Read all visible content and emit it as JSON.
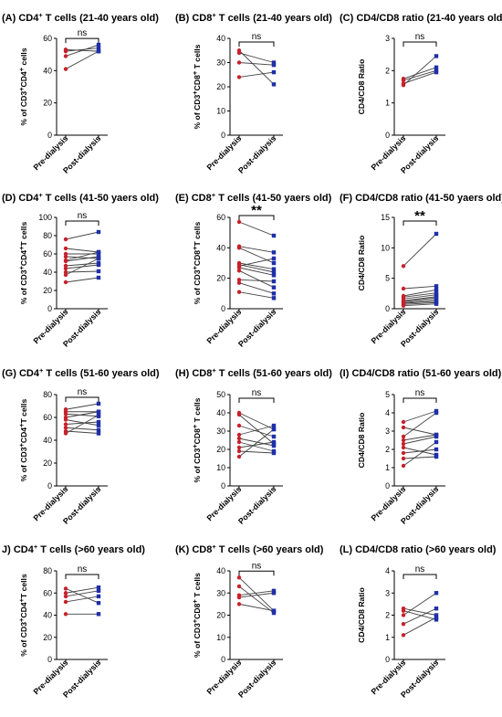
{
  "colors": {
    "pre": "#c8202a",
    "post": "#1f2fa8",
    "line": "#444444",
    "axis": "#000000"
  },
  "chart_data": [
    {
      "id": "A",
      "type": "line",
      "label": "(A)",
      "title_main": "CD4",
      "title_sup": "+",
      "title_rest": " T cells (21-40 years old)",
      "ylabel_parts": [
        [
          "% of CD3",
          ""
        ],
        [
          "+",
          "sup"
        ],
        [
          "CD4",
          ""
        ],
        [
          "+",
          "sup"
        ],
        [
          " cells",
          ""
        ]
      ],
      "ylim": [
        0,
        60
      ],
      "yticks": [
        0,
        20,
        40,
        60
      ],
      "categories": [
        "Pre-dialysis",
        "Post-dialysis"
      ],
      "sig": "ns",
      "pairs": [
        [
          53,
          52
        ],
        [
          52,
          54
        ],
        [
          49,
          56
        ],
        [
          41,
          52
        ]
      ]
    },
    {
      "id": "B",
      "type": "line",
      "label": "(B)",
      "title_main": "CD8",
      "title_sup": "+",
      "title_rest": " T cells (21-40 years old)",
      "ylabel_parts": [
        [
          "% of CD3",
          ""
        ],
        [
          "+",
          "sup"
        ],
        [
          "CD8",
          ""
        ],
        [
          "+",
          "sup"
        ],
        [
          " T cells",
          ""
        ]
      ],
      "ylim": [
        0,
        40
      ],
      "yticks": [
        0,
        10,
        20,
        30,
        40
      ],
      "categories": [
        "Pre-dialysis",
        "Post-dialysis"
      ],
      "sig": "ns",
      "pairs": [
        [
          34,
          30
        ],
        [
          30,
          29
        ],
        [
          35,
          21
        ],
        [
          24,
          26
        ]
      ]
    },
    {
      "id": "C",
      "type": "line",
      "label": "(C)",
      "title_main": "CD4/CD8 ratio (21-40 years old)",
      "title_sup": "",
      "title_rest": "",
      "ylabel_parts": [
        [
          "CD4/CD8 Ratio",
          ""
        ]
      ],
      "ylim": [
        0,
        3
      ],
      "yticks": [
        0,
        1,
        2,
        3
      ],
      "categories": [
        "Pre-dialysis",
        "Post-dialysis"
      ],
      "sig": "ns",
      "pairs": [
        [
          1.55,
          2.45
        ],
        [
          1.6,
          1.95
        ],
        [
          1.7,
          2.0
        ],
        [
          1.75,
          2.1
        ]
      ]
    },
    {
      "id": "D",
      "type": "line",
      "label": "(D)",
      "title_main": "CD4",
      "title_sup": "+",
      "title_rest": " T cells (41-50 yaers old)",
      "ylabel_parts": [
        [
          "% of CD3",
          ""
        ],
        [
          "+",
          "sup"
        ],
        [
          "CD4",
          ""
        ],
        [
          "+",
          "sup"
        ],
        [
          "T cells",
          ""
        ]
      ],
      "ylim": [
        0,
        100
      ],
      "yticks": [
        0,
        20,
        40,
        60,
        80,
        100
      ],
      "categories": [
        "Pre-dialysis",
        "Post-dialysis"
      ],
      "sig": "ns",
      "pairs": [
        [
          76,
          84
        ],
        [
          66,
          62
        ],
        [
          60,
          60
        ],
        [
          57,
          55
        ],
        [
          53,
          62
        ],
        [
          52,
          57
        ],
        [
          47,
          50
        ],
        [
          44,
          48
        ],
        [
          40,
          41
        ],
        [
          37,
          55
        ],
        [
          29,
          34
        ]
      ]
    },
    {
      "id": "E",
      "type": "line",
      "label": "(E)",
      "title_main": "CD8",
      "title_sup": "+",
      "title_rest": " T cells (41-50 yaers old)",
      "ylabel_parts": [
        [
          "% of CD3",
          ""
        ],
        [
          "+",
          "sup"
        ],
        [
          "CD8",
          ""
        ],
        [
          "+",
          "sup"
        ],
        [
          "T cells",
          ""
        ]
      ],
      "ylim": [
        0,
        60
      ],
      "yticks": [
        0,
        20,
        40,
        60
      ],
      "categories": [
        "Pre-dialysis",
        "Post-dialysis"
      ],
      "sig": "**",
      "sig_strong": true,
      "pairs": [
        [
          57,
          48
        ],
        [
          41,
          37
        ],
        [
          40,
          30
        ],
        [
          30,
          26
        ],
        [
          29,
          24
        ],
        [
          28,
          33
        ],
        [
          27,
          22
        ],
        [
          25,
          14
        ],
        [
          19,
          18
        ],
        [
          17,
          10
        ],
        [
          11,
          7
        ]
      ]
    },
    {
      "id": "F",
      "type": "line",
      "label": "(F)",
      "title_main": "CD4/CD8 ratio (41-50 yaers old)",
      "title_sup": "",
      "title_rest": "",
      "ylabel_parts": [
        [
          "CD4/CD8 Ratio",
          ""
        ]
      ],
      "ylim": [
        0,
        15
      ],
      "yticks": [
        0,
        5,
        10,
        15
      ],
      "categories": [
        "Pre-dialysis",
        "Post-dialysis"
      ],
      "sig": "**",
      "sig_strong": true,
      "pairs": [
        [
          7.0,
          12.3
        ],
        [
          3.3,
          3.7
        ],
        [
          2.1,
          3.1
        ],
        [
          1.9,
          2.6
        ],
        [
          1.6,
          2.3
        ],
        [
          1.3,
          2.0
        ],
        [
          1.2,
          1.8
        ],
        [
          1.0,
          1.5
        ],
        [
          0.9,
          1.2
        ],
        [
          0.7,
          1.0
        ],
        [
          0.5,
          0.8
        ]
      ]
    },
    {
      "id": "G",
      "type": "line",
      "label": "(G)",
      "title_main": "CD4",
      "title_sup": "+",
      "title_rest": " T cells (51-60 years old)",
      "ylabel_parts": [
        [
          "% of CD3",
          ""
        ],
        [
          "+",
          "sup"
        ],
        [
          "CD4",
          ""
        ],
        [
          "+",
          "sup"
        ],
        [
          "T cells",
          ""
        ]
      ],
      "ylim": [
        0,
        80
      ],
      "yticks": [
        0,
        20,
        40,
        60,
        80
      ],
      "categories": [
        "Pre-dialysis",
        "Post-dialysis"
      ],
      "sig": "ns",
      "pairs": [
        [
          67,
          72
        ],
        [
          65,
          65
        ],
        [
          63,
          61
        ],
        [
          60,
          65
        ],
        [
          58,
          53
        ],
        [
          54,
          56
        ],
        [
          51,
          49
        ],
        [
          48,
          46
        ],
        [
          46,
          62
        ]
      ]
    },
    {
      "id": "H",
      "type": "line",
      "label": "(H)",
      "title_main": "CD8",
      "title_sup": "+",
      "title_rest": " T cells (51-60 years old)",
      "ylabel_parts": [
        [
          "% of CD3",
          ""
        ],
        [
          "+",
          "sup"
        ],
        [
          "CD8",
          ""
        ],
        [
          "+",
          "sup"
        ],
        [
          " T cells",
          ""
        ]
      ],
      "ylim": [
        0,
        50
      ],
      "yticks": [
        0,
        10,
        20,
        30,
        40,
        50
      ],
      "categories": [
        "Pre-dialysis",
        "Post-dialysis"
      ],
      "sig": "ns",
      "pairs": [
        [
          40,
          31
        ],
        [
          39,
          23
        ],
        [
          33,
          27
        ],
        [
          28,
          33
        ],
        [
          26,
          22
        ],
        [
          24,
          19
        ],
        [
          21,
          24
        ],
        [
          19,
          18
        ],
        [
          16,
          31
        ]
      ]
    },
    {
      "id": "I",
      "type": "line",
      "label": "(I)",
      "title_main": "CD4/CD8 ratio (51-60 years old)",
      "title_sup": "",
      "title_rest": "",
      "ylabel_parts": [
        [
          "CD4/CD8 Ratio",
          ""
        ]
      ],
      "ylim": [
        0,
        5
      ],
      "yticks": [
        0,
        1,
        2,
        3,
        4,
        5
      ],
      "categories": [
        "Pre-dialysis",
        "Post-dialysis"
      ],
      "sig": "ns",
      "pairs": [
        [
          3.5,
          4.1
        ],
        [
          3.2,
          2.8
        ],
        [
          2.7,
          4.0
        ],
        [
          2.5,
          2.8
        ],
        [
          2.3,
          2.7
        ],
        [
          2.1,
          1.7
        ],
        [
          1.8,
          2.0
        ],
        [
          1.5,
          1.6
        ],
        [
          1.1,
          2.4
        ]
      ]
    },
    {
      "id": "J",
      "type": "line",
      "label": "J)",
      "title_main": "CD4",
      "title_sup": "+",
      "title_rest": " T cells (>60 years old)",
      "ylabel_parts": [
        [
          "% of CD3",
          ""
        ],
        [
          "+",
          "sup"
        ],
        [
          "CD4",
          ""
        ],
        [
          "+",
          "sup"
        ],
        [
          "T cells",
          ""
        ]
      ],
      "ylim": [
        0,
        80
      ],
      "yticks": [
        0,
        20,
        40,
        60,
        80
      ],
      "categories": [
        "Pre-dialysis",
        "Post-dialysis"
      ],
      "sig": "ns",
      "pairs": [
        [
          64,
          51
        ],
        [
          60,
          65
        ],
        [
          57,
          62
        ],
        [
          52,
          57
        ],
        [
          41,
          41
        ]
      ]
    },
    {
      "id": "K",
      "type": "line",
      "label": "(K)",
      "title_main": "CD8",
      "title_sup": "+",
      "title_rest": " T cells (>60 years old)",
      "ylabel_parts": [
        [
          "% of CD3",
          ""
        ],
        [
          "+",
          "sup"
        ],
        [
          "CD8",
          ""
        ],
        [
          "+",
          "sup"
        ],
        [
          " T cells",
          ""
        ]
      ],
      "ylim": [
        0,
        40
      ],
      "yticks": [
        0,
        10,
        20,
        30,
        40
      ],
      "categories": [
        "Pre-dialysis",
        "Post-dialysis"
      ],
      "sig": "ns",
      "pairs": [
        [
          37,
          22
        ],
        [
          33,
          21
        ],
        [
          29,
          31
        ],
        [
          28,
          30
        ],
        [
          25,
          22
        ]
      ]
    },
    {
      "id": "L",
      "type": "line",
      "label": "(L)",
      "title_main": "CD4/CD8 ratio (>60 years old)",
      "title_sup": "",
      "title_rest": "",
      "ylabel_parts": [
        [
          "CD4/CD8 Ratio",
          ""
        ]
      ],
      "ylim": [
        0,
        4
      ],
      "yticks": [
        0,
        1,
        2,
        3,
        4
      ],
      "categories": [
        "Pre-dialysis",
        "Post-dialysis"
      ],
      "sig": "ns",
      "pairs": [
        [
          2.3,
          2.0
        ],
        [
          2.2,
          1.8
        ],
        [
          2.0,
          3.0
        ],
        [
          1.6,
          2.3
        ],
        [
          1.1,
          1.9
        ]
      ]
    }
  ]
}
